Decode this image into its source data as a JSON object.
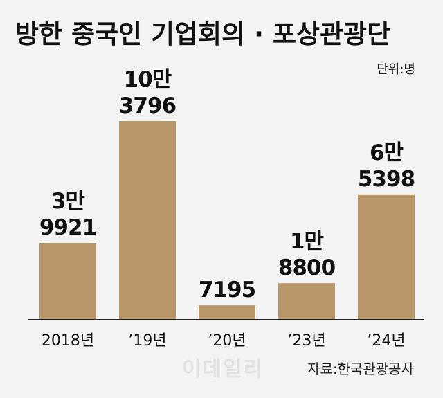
{
  "chart_data": {
    "type": "bar",
    "title": "방한 중국인 기업회의 · 포상관광단",
    "unit_label": "단위:명",
    "categories": [
      "2018년",
      "’19년",
      "’20년",
      "’23년",
      "’24년"
    ],
    "values": [
      39921,
      103796,
      7195,
      18800,
      65398
    ],
    "value_labels": [
      [
        "3만",
        "9921"
      ],
      [
        "10만",
        "3796"
      ],
      [
        "",
        "7195"
      ],
      [
        "1만",
        "8800"
      ],
      [
        "6만",
        "5398"
      ]
    ],
    "ylim": [
      0,
      103796
    ],
    "grid": false,
    "bar_color": "#b8966a",
    "source": "자료:한국관광공사",
    "watermark": "이데일리"
  }
}
